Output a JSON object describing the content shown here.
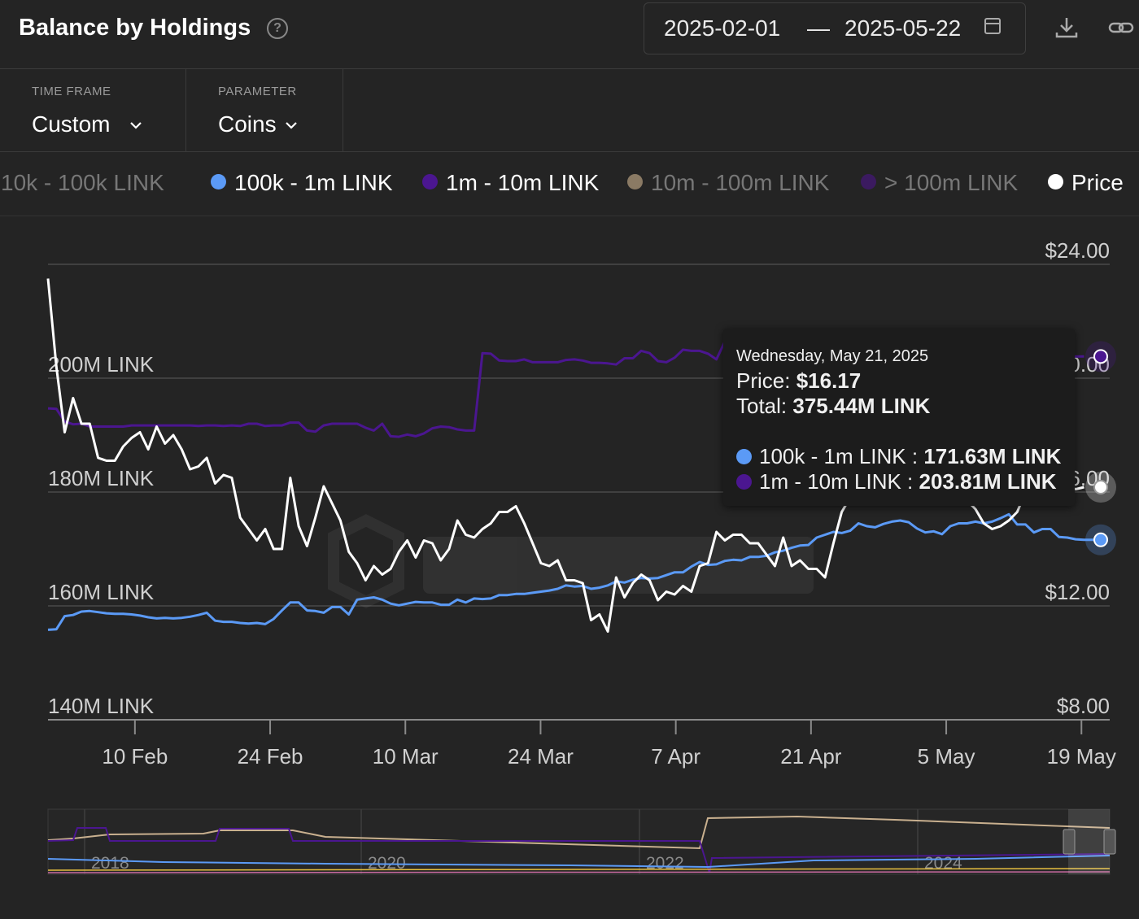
{
  "header": {
    "title": "Balance by Holdings",
    "date_start": "2025-02-01",
    "date_sep": "—",
    "date_end": "2025-05-22"
  },
  "filters": {
    "time_frame_label": "TIME FRAME",
    "time_frame_value": "Custom",
    "parameter_label": "PARAMETER",
    "parameter_value": "Coins"
  },
  "legend": [
    {
      "label": "10k - 100k LINK",
      "color": "#6fa0ff",
      "active": false
    },
    {
      "label": "100k - 1m LINK",
      "color": "#5b9af6",
      "active": true
    },
    {
      "label": "1m - 10m LINK",
      "color": "#4b1690",
      "active": true
    },
    {
      "label": "10m - 100m LINK",
      "color": "#8a7a64",
      "active": false
    },
    {
      "label": "> 100m LINK",
      "color": "#3b1a60",
      "active": false
    },
    {
      "label": "Price",
      "color": "#ffffff",
      "active": true
    }
  ],
  "tooltip": {
    "date": "Wednesday, May 21, 2025",
    "price_label": "Price:",
    "price_value": "$16.17",
    "total_label": "Total:",
    "total_value": "375.44M LINK",
    "rows": [
      {
        "label": "100k - 1m LINK :",
        "value": "171.63M LINK",
        "color": "#5b9af6"
      },
      {
        "label": "1m - 10m LINK :",
        "value": "203.81M LINK",
        "color": "#4b1690"
      }
    ]
  },
  "navigator": {
    "year_labels": [
      "2018",
      "2020",
      "2022",
      "2024"
    ]
  },
  "chart_data": {
    "type": "line",
    "title": "Balance by Holdings",
    "x_ticks": [
      "10 Feb",
      "24 Feb",
      "10 Mar",
      "24 Mar",
      "7 Apr",
      "21 Apr",
      "5 May",
      "19 May"
    ],
    "y_left_ticks": [
      "140M LINK",
      "160M LINK",
      "180M LINK",
      "200M LINK"
    ],
    "y_left_range": [
      140,
      220
    ],
    "y_right_ticks": [
      "$8.00",
      "$12.00",
      "$16.00",
      "$20.00",
      "$24.00"
    ],
    "y_right_range": [
      8,
      24
    ],
    "x_range": [
      "2025-02-01",
      "2025-05-21"
    ],
    "grid": true,
    "series": [
      {
        "name": "100k - 1m LINK",
        "axis": "left",
        "color": "#5b9af6",
        "values": [
          155.8,
          155.9,
          158.2,
          158.4,
          159,
          159.1,
          158.9,
          158.7,
          158.6,
          158.6,
          158.5,
          158.3,
          158,
          157.8,
          157.9,
          157.8,
          157.9,
          158.1,
          158.4,
          158.8,
          157.4,
          157.2,
          157.2,
          157,
          156.9,
          157,
          156.8,
          157.7,
          159.2,
          160.6,
          160.6,
          159.2,
          159.1,
          158.8,
          159.8,
          159.8,
          158.5,
          161.1,
          161.3,
          161.5,
          161.1,
          160.4,
          160.1,
          160.4,
          160.7,
          160.6,
          160.6,
          160.2,
          160.2,
          161.1,
          160.6,
          161.3,
          161.2,
          161.3,
          161.9,
          161.9,
          162.1,
          162.1,
          162.3,
          162.5,
          162.7,
          163,
          163.6,
          163.4,
          163.5,
          163,
          163.2,
          163.6,
          164.3,
          164.1,
          164.6,
          164.9,
          164.8,
          164.9,
          165.4,
          165.9,
          165.9,
          166.9,
          167.7,
          167.2,
          167.3,
          167.9,
          168.1,
          168,
          168.6,
          168.6,
          168.8,
          169.4,
          169.7,
          170.2,
          170.6,
          170.7,
          172,
          172.5,
          173,
          172.8,
          173.2,
          174.5,
          174,
          173.8,
          174.4,
          174.8,
          175,
          174.7,
          173.6,
          172.9,
          173.1,
          172.6,
          174,
          174.5,
          174.5,
          174.8,
          174.5,
          174.8,
          175.4,
          176.1,
          174.3,
          174.3,
          172.9,
          173.5,
          173.5,
          172.1,
          172,
          171.7,
          171.6,
          171.6,
          171.6
        ]
      },
      {
        "name": "1m - 10m LINK",
        "axis": "left",
        "color": "#4b1690",
        "values": [
          194.7,
          194.6,
          192.4,
          191.9,
          192,
          191.5,
          191.5,
          191.5,
          191.5,
          191.5,
          191.7,
          191.7,
          191.7,
          191.7,
          191.7,
          191.7,
          191.7,
          191.7,
          191.6,
          191.7,
          191.7,
          191.6,
          191.7,
          191.6,
          192,
          192,
          191.6,
          191.7,
          191.7,
          192.2,
          192.2,
          190.8,
          190.6,
          191.7,
          192,
          192,
          192,
          192,
          191.3,
          190.8,
          192,
          189.8,
          189.7,
          190.1,
          189.8,
          190.3,
          191.2,
          191.5,
          191.4,
          191,
          190.8,
          190.8,
          204.4,
          204.3,
          203.1,
          203,
          203,
          203.3,
          202.8,
          202.8,
          202.8,
          202.8,
          203.2,
          203.3,
          203.1,
          202.7,
          202.7,
          202.6,
          202.4,
          203.5,
          203.5,
          204.8,
          204.4,
          203,
          202.8,
          203.6,
          205,
          204.8,
          204.8,
          204.3,
          203.3,
          206.4,
          205,
          208.1,
          206.3,
          204.4,
          205.8,
          206,
          205.9,
          206.2,
          205,
          205.1,
          206.1,
          206.2,
          204.5,
          204.4,
          205.5,
          205.3,
          205.3,
          204.9,
          204.4,
          204.9,
          204.9,
          204.3,
          203.2,
          203.5,
          203.6,
          204.3,
          204.4,
          204.4,
          203.1,
          203,
          203.5,
          204.2,
          204.3,
          204.3,
          204.5,
          204.9,
          204.6,
          203.9,
          204.2,
          204.2,
          203.9,
          203.8,
          203.81
        ]
      },
      {
        "name": "Price",
        "axis": "right",
        "color": "#ffffff",
        "values": [
          23.5,
          20.4,
          18.1,
          19.3,
          18.4,
          18.4,
          17.2,
          17.1,
          17.1,
          17.6,
          17.9,
          18.1,
          17.5,
          18.3,
          17.7,
          18,
          17.5,
          16.8,
          16.9,
          17.2,
          16.3,
          16.6,
          16.5,
          15.1,
          14.7,
          14.3,
          14.7,
          14,
          14,
          16.5,
          14.8,
          14.1,
          15.1,
          16.2,
          15.6,
          15,
          13.9,
          13.5,
          12.9,
          13.4,
          13.1,
          13.3,
          13.9,
          14.3,
          13.7,
          14.3,
          14.2,
          13.6,
          14,
          15,
          14.5,
          14.4,
          14.7,
          14.9,
          15.3,
          15.3,
          15.5,
          14.9,
          14.2,
          13.5,
          13.4,
          13.6,
          12.9,
          12.9,
          12.8,
          11.5,
          11.7,
          11.1,
          13,
          12.3,
          12.8,
          13.1,
          12.9,
          12.2,
          12.5,
          12.4,
          12.7,
          12.5,
          13.4,
          13.5,
          14.6,
          14.3,
          14.5,
          14.5,
          14.2,
          14.2,
          13.8,
          13.4,
          14.4,
          13.4,
          13.6,
          13.3,
          13.3,
          13,
          14.2,
          15.3,
          15.8,
          16,
          16.2,
          16.5,
          16.5,
          16.4,
          16.3,
          16.3,
          16.2,
          16,
          15.7,
          15.9,
          16.1,
          15.8,
          15.7,
          15.4,
          14.9,
          14.7,
          14.8,
          15,
          15.3,
          16,
          16.1,
          16.4,
          16.5,
          15.7,
          16.2,
          16.1,
          16.17
        ]
      }
    ]
  }
}
